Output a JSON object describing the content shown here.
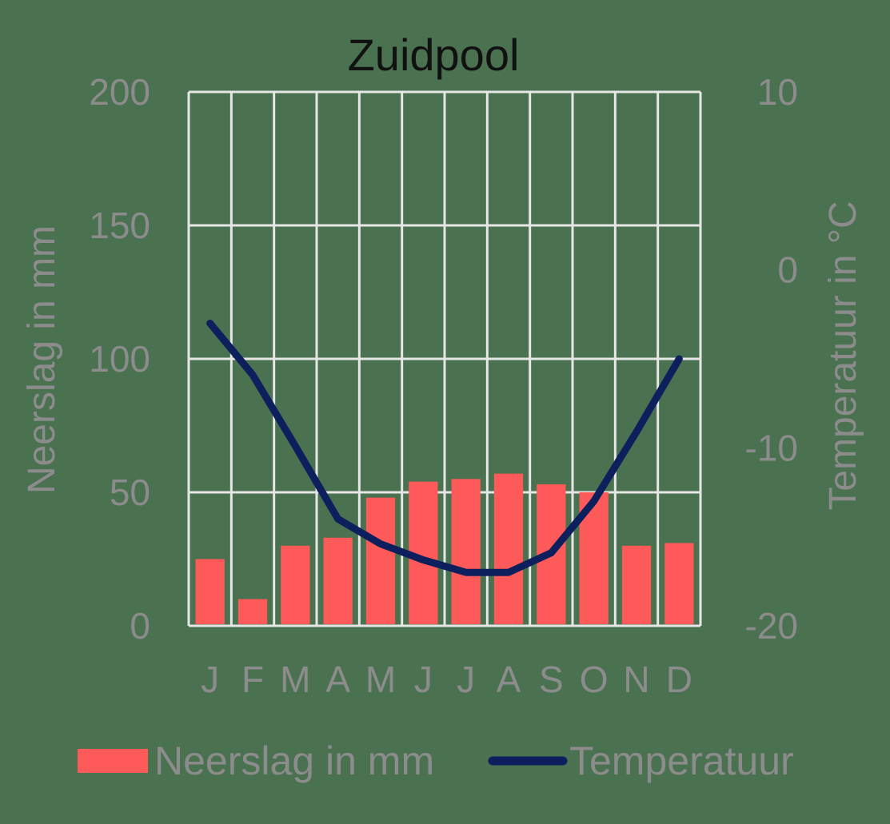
{
  "chart_data": {
    "type": "bar+line",
    "title": "Zuidpool",
    "categories": [
      "J",
      "F",
      "M",
      "A",
      "M",
      "J",
      "J",
      "A",
      "S",
      "O",
      "N",
      "D"
    ],
    "series": [
      {
        "name": "Neerslag in mm",
        "type": "bar",
        "axis": "left",
        "color": "#ff5a5a",
        "values": [
          25,
          10,
          30,
          33,
          48,
          54,
          55,
          57,
          53,
          50,
          30,
          31
        ]
      },
      {
        "name": "Temperatuur",
        "type": "line",
        "axis": "right",
        "color": "#0d1f5c",
        "values": [
          -3,
          -5.9,
          -9.9,
          -14,
          -15.4,
          -16.3,
          -17,
          -17,
          -15.9,
          -13,
          -9.1,
          -5
        ]
      }
    ],
    "ylabel": "Neerslag in mm",
    "ylabel_right": "Temperatuur in °C",
    "ylim": [
      0,
      200
    ],
    "ylim_right": [
      -20,
      10
    ],
    "yticks": [
      "0",
      "50",
      "100",
      "150",
      "200"
    ],
    "yticks_right": [
      "-20",
      "-10",
      "0",
      "10"
    ],
    "grid": true,
    "legend_position": "bottom"
  },
  "legend": {
    "bar_label": "Neerslag in mm",
    "line_label": "Temperatuur"
  },
  "colors": {
    "background": "#4a7250",
    "grid": "#e6e6e6",
    "bar": "#ff5a5a",
    "line": "#0d1f5c",
    "text": "#8c8c8c",
    "title": "#111111"
  }
}
